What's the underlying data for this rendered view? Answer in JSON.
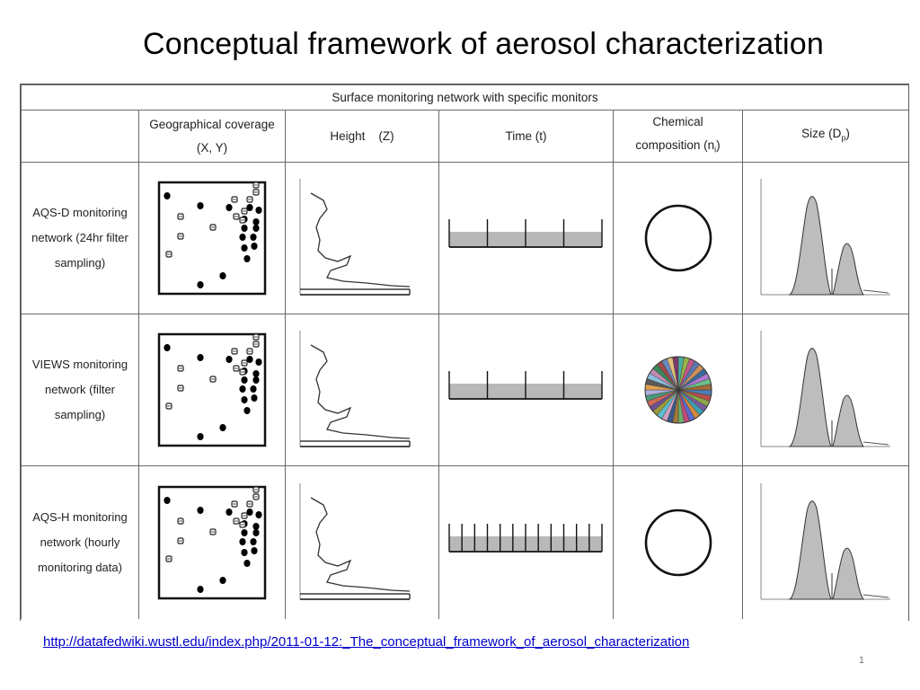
{
  "title": "Conceptual framework of aerosol characterization",
  "table": {
    "header": "Surface monitoring network with specific monitors",
    "columns": {
      "geo_line1": "Geographical coverage",
      "geo_line2": "(X, Y)",
      "height": "Height    (Z)",
      "time": "Time (t)",
      "chem_line1": "Chemical",
      "chem_line2": "composition (n",
      "chem_sub": "i",
      "chem_end": ")",
      "size": "Size (D",
      "size_sub": "p",
      "size_end": ")"
    },
    "rows": [
      {
        "label": [
          "AQS-D monitoring",
          "network (24hr filter",
          "sampling)"
        ],
        "time_ticks": 4,
        "composition": "ring"
      },
      {
        "label": [
          "VIEWS monitoring",
          "network (filter",
          "sampling)"
        ],
        "time_ticks": 4,
        "composition": "pie"
      },
      {
        "label": [
          "AQS-H monitoring",
          "network (hourly",
          "monitoring data)"
        ],
        "time_ticks": 12,
        "composition": "ring"
      }
    ]
  },
  "link": "http://datafedwiki.wustl.edu/index.php/2011-01-12:_The_conceptual_framework_of_aerosol_characterization",
  "page_number": "1"
}
